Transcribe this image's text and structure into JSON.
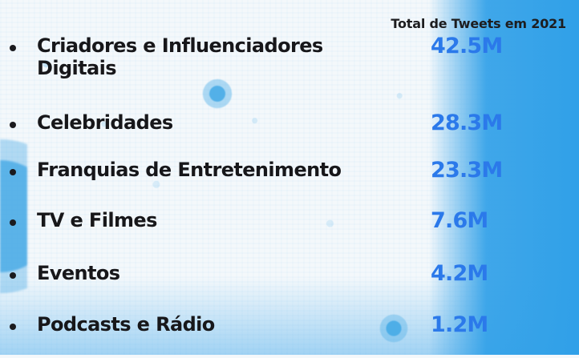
{
  "header": {
    "title": "Total de Tweets em 2021"
  },
  "chart_data": {
    "type": "table",
    "categories": [
      "Criadores e Influenciadores Digitais",
      "Celebridades",
      "Franquias de Entretenimento",
      "TV e Filmes",
      "Eventos",
      "Podcasts e Rádio"
    ],
    "values": [
      42.5,
      28.3,
      23.3,
      7.6,
      4.2,
      1.2
    ],
    "display_values": [
      "42.5M",
      "28.3M",
      "23.3M",
      "7.6M",
      "4.2M",
      "1.2M"
    ]
  },
  "rows": [
    {
      "label": "Criadores e Influenciadores\nDigitais",
      "value": "42.5M"
    },
    {
      "label": "Celebridades",
      "value": "28.3M"
    },
    {
      "label": "Franquias de Entretenimento",
      "value": "23.3M"
    },
    {
      "label": "TV e Filmes",
      "value": "7.6M"
    },
    {
      "label": "Eventos",
      "value": "4.2M"
    },
    {
      "label": "Podcasts e Rádio",
      "value": "1.2M"
    }
  ],
  "colors": {
    "accent": "#2b79ea",
    "text": "#17171a",
    "background": "#f4f8fb",
    "splash": "#42a9e6"
  }
}
